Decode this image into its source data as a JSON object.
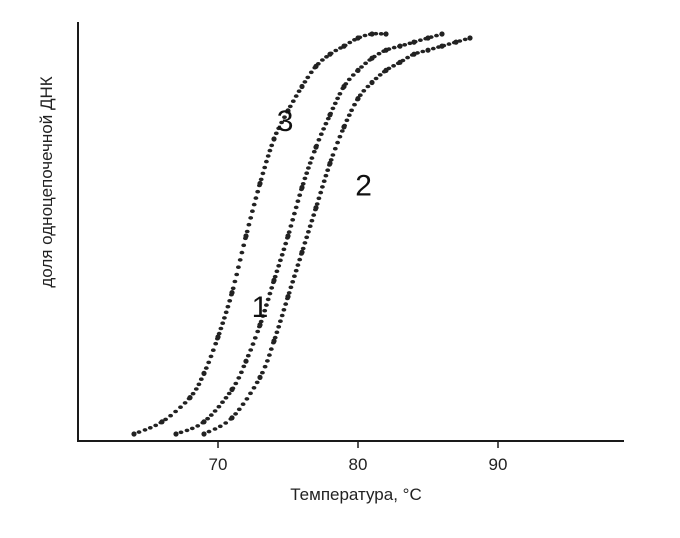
{
  "chart_data": {
    "type": "line",
    "xlabel": "Температура, °C",
    "ylabel": "доля одноцепочечной ДНК",
    "xlim": [
      60,
      99
    ],
    "ylim": [
      0,
      1
    ],
    "x_ticks": [
      {
        "value": 70,
        "label": "70"
      },
      {
        "value": 80,
        "label": "80"
      },
      {
        "value": 90,
        "label": "90"
      }
    ],
    "grid": false,
    "series": [
      {
        "name": "3",
        "color": "#222222",
        "x": [
          64,
          66,
          68,
          69,
          70,
          71,
          72,
          73,
          74,
          75,
          76,
          77,
          78,
          79,
          80,
          81,
          82
        ],
        "y": [
          0.01,
          0.04,
          0.1,
          0.16,
          0.25,
          0.36,
          0.5,
          0.63,
          0.74,
          0.81,
          0.87,
          0.92,
          0.95,
          0.97,
          0.99,
          1.0,
          1.0
        ]
      },
      {
        "name": "1",
        "color": "#222222",
        "x": [
          67,
          69,
          71,
          72,
          73,
          74,
          75,
          76,
          77,
          78,
          79,
          80,
          81,
          82,
          83,
          84,
          85,
          86
        ],
        "y": [
          0.01,
          0.04,
          0.12,
          0.19,
          0.28,
          0.39,
          0.5,
          0.62,
          0.72,
          0.8,
          0.87,
          0.91,
          0.94,
          0.96,
          0.97,
          0.98,
          0.99,
          1.0
        ]
      },
      {
        "name": "2",
        "color": "#222222",
        "x": [
          69,
          71,
          73,
          74,
          75,
          76,
          77,
          78,
          79,
          80,
          81,
          82,
          83,
          84,
          85,
          86,
          87,
          88
        ],
        "y": [
          0.01,
          0.05,
          0.15,
          0.24,
          0.35,
          0.46,
          0.57,
          0.68,
          0.77,
          0.84,
          0.88,
          0.91,
          0.93,
          0.95,
          0.96,
          0.97,
          0.98,
          0.99
        ]
      }
    ],
    "curve_labels": [
      {
        "text": "3",
        "series": "3",
        "x": 74.2,
        "y": 0.76
      },
      {
        "text": "1",
        "series": "1",
        "x": 72.4,
        "y": 0.3
      },
      {
        "text": "2",
        "series": "2",
        "x": 79.8,
        "y": 0.6
      }
    ]
  }
}
